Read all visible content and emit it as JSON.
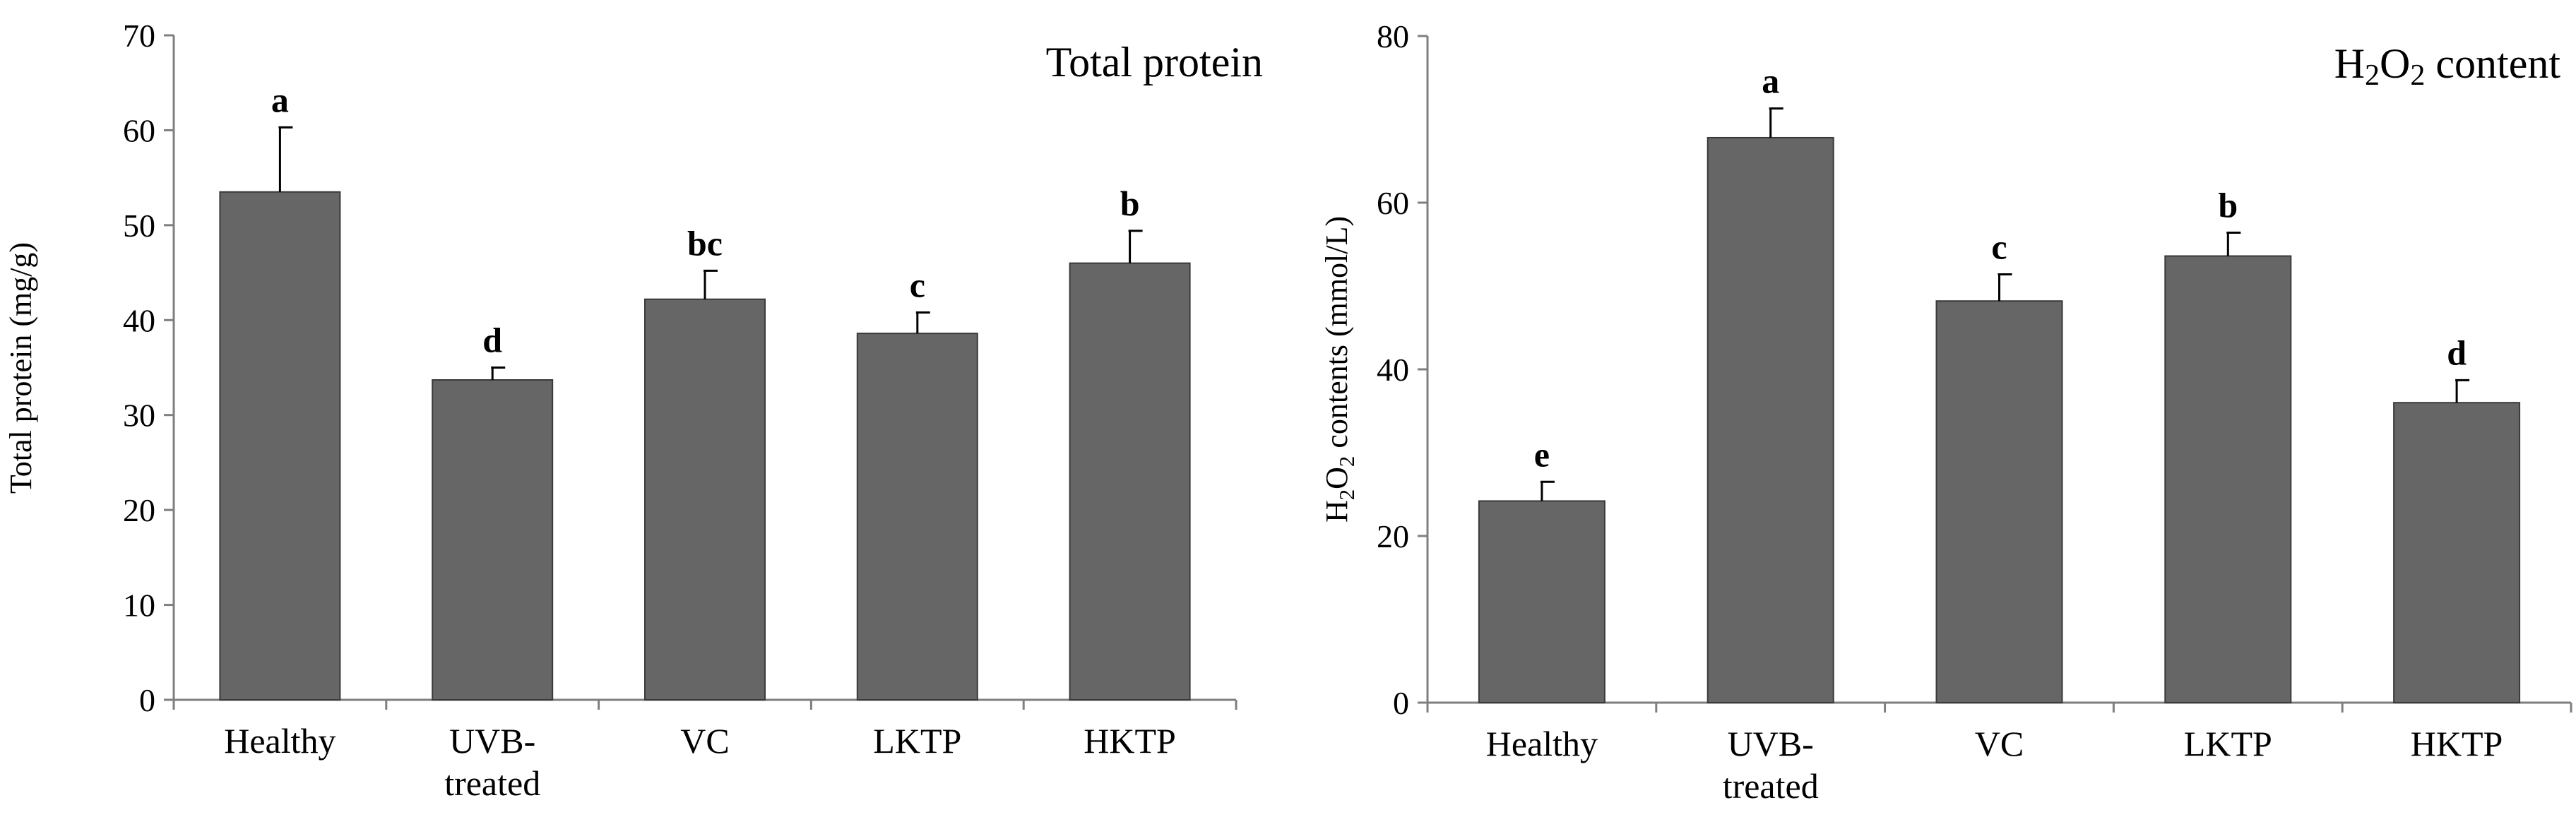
{
  "chart_data": [
    {
      "type": "bar",
      "title": "Total protein",
      "xlabel": "",
      "ylabel": "Total protein (mg/g)",
      "ylim": [
        0,
        70
      ],
      "yticks": [
        0,
        10,
        20,
        30,
        40,
        50,
        60,
        70
      ],
      "categories": [
        [
          "Healthy"
        ],
        [
          "UVB-",
          "treated"
        ],
        [
          "VC"
        ],
        [
          "LKTP"
        ],
        [
          "HKTP"
        ]
      ],
      "values": [
        53.5,
        33.7,
        42.2,
        38.6,
        46.0
      ],
      "errors": [
        6.8,
        1.3,
        3.0,
        2.2,
        3.4
      ],
      "significance": [
        "a",
        "d",
        "bc",
        "c",
        "b"
      ],
      "bar_color": "#666666",
      "grid": false
    },
    {
      "type": "bar",
      "title": "H2O2 content",
      "title_parts": {
        "pre": "H",
        "sub1": "2",
        "mid": "O",
        "sub2": "2",
        "post": " content"
      },
      "xlabel": "",
      "ylabel": "H2O2 contents (mmol/L)",
      "ylabel_parts": {
        "pre": "H",
        "sub1": "2",
        "mid": "O",
        "sub2": "2",
        "post": " contents (mmol/L)"
      },
      "ylim": [
        0,
        80
      ],
      "yticks": [
        0,
        20,
        40,
        60,
        80
      ],
      "categories": [
        [
          "Healthy"
        ],
        [
          "UVB-",
          "treated"
        ],
        [
          "VC"
        ],
        [
          "LKTP"
        ],
        [
          "HKTP"
        ]
      ],
      "values": [
        24.2,
        67.8,
        48.2,
        53.6,
        36.0
      ],
      "errors": [
        2.3,
        3.5,
        3.2,
        2.8,
        2.7
      ],
      "significance": [
        "e",
        "a",
        "c",
        "b",
        "d"
      ],
      "bar_color": "#666666",
      "grid": false
    }
  ]
}
